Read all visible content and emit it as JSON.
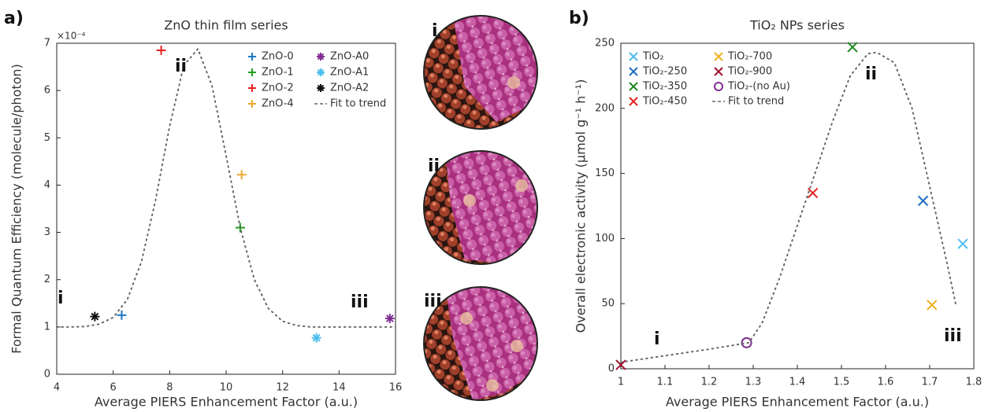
{
  "chart_data": [
    {
      "type": "scatter",
      "panel": "a)",
      "title": "ZnO thin film series",
      "xlabel": "Average PIERS Enhancement Factor (a.u.)",
      "ylabel": "Formal Quantum Efficiency (molecule/photon)",
      "y_scale_label": "×10⁻⁴",
      "xlim": [
        4,
        16
      ],
      "ylim": [
        0,
        7
      ],
      "xticks": [
        4,
        6,
        8,
        10,
        12,
        14,
        16
      ],
      "yticks": [
        0,
        1,
        2,
        3,
        4,
        5,
        6,
        7
      ],
      "grid": false,
      "legend": "upper right",
      "annotations": [
        "i",
        "ii",
        "iii"
      ],
      "series": [
        {
          "name": "ZnO-0",
          "color": "#1f77c4",
          "marker": "+",
          "x": [
            6.3
          ],
          "values": [
            1.25
          ]
        },
        {
          "name": "ZnO-1",
          "color": "#1fa01f",
          "marker": "+",
          "x": [
            10.5
          ],
          "values": [
            3.1
          ]
        },
        {
          "name": "ZnO-2",
          "color": "#e82020",
          "marker": "+",
          "x": [
            7.7
          ],
          "values": [
            6.85
          ]
        },
        {
          "name": "ZnO-4",
          "color": "#f0a830",
          "marker": "+",
          "x": [
            10.55
          ],
          "values": [
            4.22
          ]
        },
        {
          "name": "ZnO-A0",
          "color": "#7e2f8e",
          "marker": "*",
          "x": [
            15.8
          ],
          "values": [
            1.18
          ]
        },
        {
          "name": "ZnO-A1",
          "color": "#4dbeee",
          "marker": "*",
          "x": [
            13.2
          ],
          "values": [
            0.77
          ]
        },
        {
          "name": "ZnO-A2",
          "color": "#111111",
          "marker": "*",
          "x": [
            5.35
          ],
          "values": [
            1.22
          ]
        },
        {
          "name": "Fit to trend",
          "color": "#666666",
          "marker": "dotted",
          "x": [
            4,
            4.5,
            5,
            5.5,
            6,
            6.5,
            7,
            7.5,
            8,
            8.5,
            9,
            9.5,
            10,
            10.5,
            11,
            11.5,
            12,
            12.5,
            13,
            13.5,
            14,
            14.5,
            15,
            15.5,
            16
          ],
          "values": [
            1.0,
            1.0,
            1.01,
            1.06,
            1.2,
            1.58,
            2.38,
            3.68,
            5.25,
            6.53,
            6.88,
            6.1,
            4.62,
            3.1,
            2.0,
            1.39,
            1.12,
            1.03,
            1.0,
            1.0,
            1.0,
            1.0,
            1.0,
            1.0,
            1.0
          ]
        }
      ]
    },
    {
      "type": "scatter",
      "panel": "b)",
      "title": "TiO₂ NPs series",
      "xlabel": "Average PIERS Enhancement Factor (a.u.)",
      "ylabel": "Overall electronic activity (μmol g⁻¹ h⁻¹)",
      "xlim": [
        1,
        1.8
      ],
      "ylim": [
        0,
        250
      ],
      "xticks": [
        1,
        1.1,
        1.2,
        1.3,
        1.4,
        1.5,
        1.6,
        1.7,
        1.8
      ],
      "yticks": [
        0,
        50,
        100,
        150,
        200,
        250
      ],
      "grid": false,
      "legend": "upper left",
      "annotations": [
        "i",
        "ii",
        "iii"
      ],
      "series": [
        {
          "name": "TiO₂",
          "color": "#4dbeee",
          "marker": "x",
          "x": [
            1.775
          ],
          "values": [
            96
          ]
        },
        {
          "name": "TiO₂-250",
          "color": "#1f6fc4",
          "marker": "x",
          "x": [
            1.685
          ],
          "values": [
            129
          ]
        },
        {
          "name": "TiO₂-350",
          "color": "#1f8a1f",
          "marker": "x",
          "x": [
            1.525
          ],
          "values": [
            247
          ]
        },
        {
          "name": "TiO₂-450",
          "color": "#e82020",
          "marker": "x",
          "x": [
            1.435
          ],
          "values": [
            135
          ]
        },
        {
          "name": "TiO₂-700",
          "color": "#edb120",
          "marker": "x",
          "x": [
            1.705
          ],
          "values": [
            49
          ]
        },
        {
          "name": "TiO₂-900",
          "color": "#a2142f",
          "marker": "x",
          "x": [
            1.0
          ],
          "values": [
            3
          ]
        },
        {
          "name": "TiO₂-(no Au)",
          "color": "#7e2f8e",
          "marker": "o",
          "x": [
            1.285
          ],
          "values": [
            20
          ]
        },
        {
          "name": "Fit to trend",
          "color": "#666666",
          "marker": "dotted",
          "x": [
            1.0,
            1.1,
            1.2,
            1.29,
            1.32,
            1.36,
            1.4,
            1.44,
            1.48,
            1.52,
            1.56,
            1.58,
            1.62,
            1.66,
            1.7,
            1.74,
            1.76
          ],
          "values": [
            5,
            10,
            15,
            20,
            35,
            70,
            110,
            150,
            190,
            225,
            242,
            243,
            235,
            200,
            140,
            80,
            48
          ]
        }
      ]
    }
  ],
  "images": {
    "labels": [
      "i",
      "ii",
      "iii"
    ]
  }
}
